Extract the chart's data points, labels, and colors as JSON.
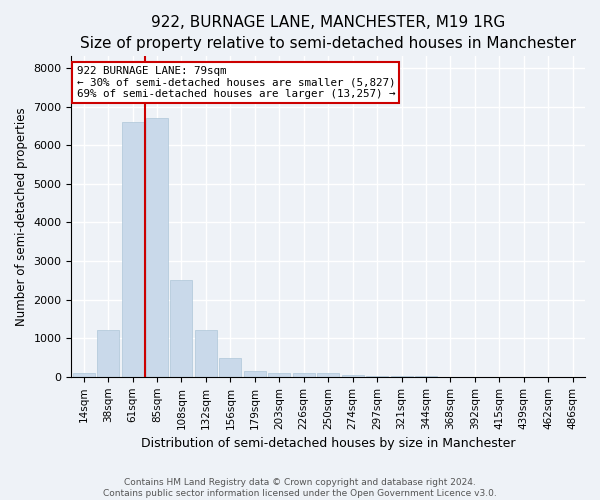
{
  "title": "922, BURNAGE LANE, MANCHESTER, M19 1RG",
  "subtitle": "Size of property relative to semi-detached houses in Manchester",
  "xlabel": "Distribution of semi-detached houses by size in Manchester",
  "ylabel": "Number of semi-detached properties",
  "categories": [
    "14sqm",
    "38sqm",
    "61sqm",
    "85sqm",
    "108sqm",
    "132sqm",
    "156sqm",
    "179sqm",
    "203sqm",
    "226sqm",
    "250sqm",
    "274sqm",
    "297sqm",
    "321sqm",
    "344sqm",
    "368sqm",
    "392sqm",
    "415sqm",
    "439sqm",
    "462sqm",
    "486sqm"
  ],
  "values": [
    100,
    1200,
    6600,
    6700,
    2500,
    1200,
    500,
    150,
    100,
    100,
    100,
    50,
    30,
    20,
    10,
    5,
    3,
    2,
    1,
    1,
    0
  ],
  "bar_color": "#c9d9ea",
  "bar_edgecolor": "#aec6d8",
  "property_line_x": 2.5,
  "annotation_line1": "922 BURNAGE LANE: 79sqm",
  "annotation_line2": "← 30% of semi-detached houses are smaller (5,827)",
  "annotation_line3": "69% of semi-detached houses are larger (13,257) →",
  "red_line_color": "#cc0000",
  "annotation_box_facecolor": "#ffffff",
  "annotation_box_edgecolor": "#cc0000",
  "ylim": [
    0,
    8300
  ],
  "yticks": [
    0,
    1000,
    2000,
    3000,
    4000,
    5000,
    6000,
    7000,
    8000
  ],
  "background_color": "#eef2f7",
  "plot_background": "#eef2f7",
  "grid_color": "#ffffff",
  "title_fontsize": 11,
  "subtitle_fontsize": 9,
  "footer_line1": "Contains HM Land Registry data © Crown copyright and database right 2024.",
  "footer_line2": "Contains public sector information licensed under the Open Government Licence v3.0."
}
